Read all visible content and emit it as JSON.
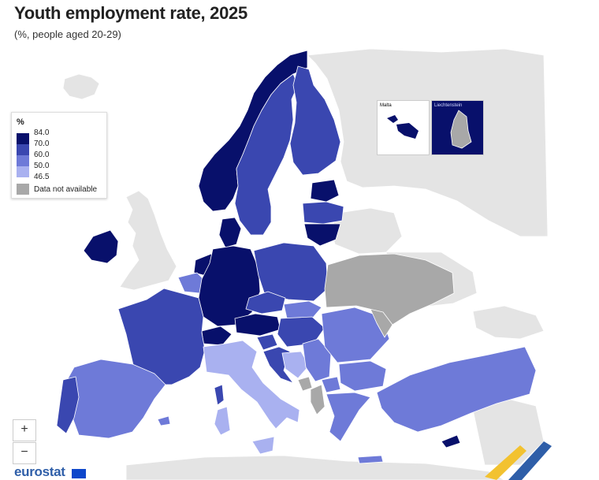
{
  "header": {
    "title": "Youth employment rate, 2025",
    "subtitle": "(%, people aged 20-29)"
  },
  "legend": {
    "unit": "%",
    "levels": [
      "84.0",
      "70.0",
      "60.0",
      "50.0",
      "46.5"
    ],
    "na_label": "Data not available",
    "colors": [
      "#08106b",
      "#3a47b0",
      "#6e7ad8",
      "#a9b1f0",
      "#a8a8a8"
    ]
  },
  "insets": {
    "malta": "Malta",
    "liechtenstein": "Liechtenstein"
  },
  "zoom": {
    "in": "+",
    "out": "−"
  },
  "footer": {
    "logo": "eurostat"
  },
  "colors": {
    "darkest": "#08106b",
    "dark": "#3a47b0",
    "mid": "#6e7ad8",
    "light": "#a9b1f0",
    "na": "#a8a8a8",
    "nonmember": "#e4e4e4",
    "border": "#ffffff",
    "sea": "#ffffff"
  }
}
